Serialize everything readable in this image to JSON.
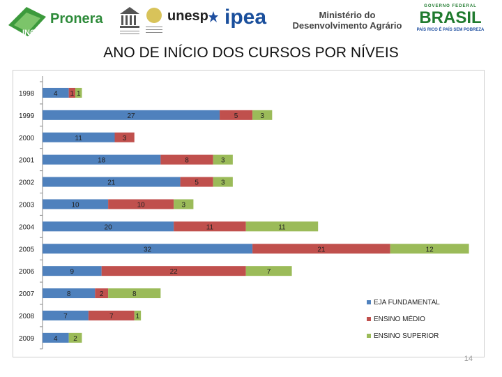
{
  "header": {
    "logos": {
      "incra": "INCRA",
      "pronera": "Pronera",
      "unesp": "unesp",
      "ipea": "ipea",
      "mda": "Ministério do Desenvolvimento Agrário",
      "brasil_top": "GOVERNO FEDERAL",
      "brasil": "BRASIL",
      "brasil_sub": "PAÍS RICO É PAÍS SEM POBREZA"
    }
  },
  "page_number": "14",
  "chart_data": {
    "type": "bar",
    "orientation": "horizontal",
    "stacked": true,
    "title": "ANO DE INÍCIO DOS CURSOS POR NÍVEIS",
    "categories": [
      "1998",
      "1999",
      "2000",
      "2001",
      "2002",
      "2003",
      "2004",
      "2005",
      "2006",
      "2007",
      "2008",
      "2009"
    ],
    "series": [
      {
        "name": "EJA FUNDAMENTAL",
        "color": "#4f81bd",
        "values": [
          4,
          27,
          11,
          18,
          21,
          10,
          20,
          32,
          9,
          8,
          7,
          4
        ]
      },
      {
        "name": "ENSINO MÉDIO",
        "color": "#c0504d",
        "values": [
          1,
          5,
          3,
          8,
          5,
          10,
          11,
          21,
          22,
          2,
          7,
          0
        ]
      },
      {
        "name": "ENSINO SUPERIOR",
        "color": "#9bbb59",
        "values": [
          1,
          3,
          0,
          3,
          3,
          3,
          11,
          12,
          7,
          8,
          1,
          2
        ]
      }
    ],
    "xlim": [
      0,
      66
    ],
    "grid": false,
    "legend_position": "bottom-right"
  }
}
